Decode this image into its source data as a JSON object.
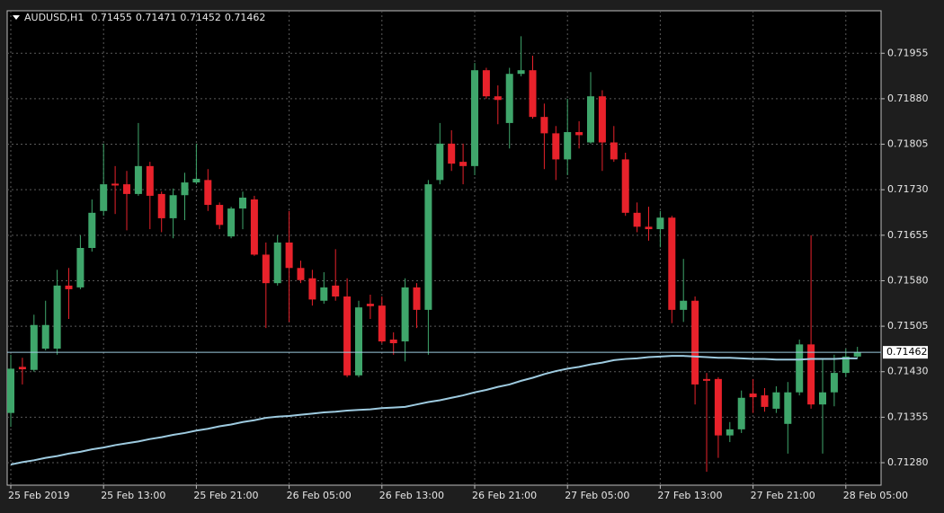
{
  "chart_data": {
    "type": "candlestick",
    "symbol": "AUDUSD,H1",
    "categories": [
      "25 Feb 2019",
      null,
      null,
      null,
      null,
      null,
      null,
      null,
      "25 Feb 13:00",
      null,
      null,
      null,
      null,
      null,
      null,
      null,
      "25 Feb 21:00",
      null,
      null,
      null,
      null,
      null,
      null,
      null,
      "26 Feb 05:00",
      null,
      null,
      null,
      null,
      null,
      null,
      null,
      "26 Feb 13:00",
      null,
      null,
      null,
      null,
      null,
      null,
      null,
      "26 Feb 21:00",
      null,
      null,
      null,
      null,
      null,
      null,
      null,
      "27 Feb 05:00",
      null,
      null,
      null,
      null,
      null,
      null,
      null,
      "27 Feb 13:00",
      null,
      null,
      null,
      null,
      null,
      null,
      null,
      "27 Feb 21:00",
      null,
      null,
      null,
      null,
      null,
      null,
      null,
      "28 Feb 05:00",
      null
    ],
    "ohlc": [
      [
        0.71362,
        0.71458,
        0.71339,
        0.71435
      ],
      [
        0.71438,
        0.71453,
        0.71409,
        0.71434
      ],
      [
        0.71433,
        0.71524,
        0.7143,
        0.71507
      ],
      [
        0.71468,
        0.71547,
        0.71465,
        0.71507
      ],
      [
        0.71468,
        0.71598,
        0.71458,
        0.71572
      ],
      [
        0.71572,
        0.71601,
        0.71517,
        0.71566
      ],
      [
        0.71569,
        0.71655,
        0.71566,
        0.71634
      ],
      [
        0.71634,
        0.71714,
        0.71628,
        0.71692
      ],
      [
        0.71695,
        0.71806,
        0.71687,
        0.71739
      ],
      [
        0.7174,
        0.71769,
        0.7169,
        0.71737
      ],
      [
        0.71739,
        0.71761,
        0.71663,
        0.71723
      ],
      [
        0.71723,
        0.7184,
        0.7172,
        0.71769
      ],
      [
        0.71769,
        0.71776,
        0.71665,
        0.7172
      ],
      [
        0.71723,
        0.71727,
        0.7166,
        0.71683
      ],
      [
        0.71683,
        0.71732,
        0.7165,
        0.71721
      ],
      [
        0.71721,
        0.71758,
        0.7168,
        0.71742
      ],
      [
        0.71742,
        0.71806,
        0.71739,
        0.71748
      ],
      [
        0.71746,
        0.71764,
        0.71695,
        0.71705
      ],
      [
        0.71705,
        0.71709,
        0.71665,
        0.71672
      ],
      [
        0.71653,
        0.71702,
        0.7165,
        0.71699
      ],
      [
        0.71699,
        0.71727,
        0.71665,
        0.71717
      ],
      [
        0.71714,
        0.7172,
        0.71621,
        0.71623
      ],
      [
        0.71623,
        0.71643,
        0.71502,
        0.71576
      ],
      [
        0.71576,
        0.71655,
        0.71572,
        0.71643
      ],
      [
        0.71643,
        0.71695,
        0.71512,
        0.71601
      ],
      [
        0.71601,
        0.71613,
        0.71576,
        0.71581
      ],
      [
        0.71584,
        0.71598,
        0.71539,
        0.71549
      ],
      [
        0.71547,
        0.71594,
        0.71542,
        0.71569
      ],
      [
        0.71572,
        0.71632,
        0.71547,
        0.71554
      ],
      [
        0.71554,
        0.71584,
        0.71421,
        0.71424
      ],
      [
        0.71424,
        0.71547,
        0.71421,
        0.71536
      ],
      [
        0.71542,
        0.71557,
        0.71517,
        0.71538
      ],
      [
        0.71539,
        0.71554,
        0.71477,
        0.7148
      ],
      [
        0.71483,
        0.71495,
        0.71458,
        0.71477
      ],
      [
        0.7148,
        0.71584,
        0.71447,
        0.71569
      ],
      [
        0.71569,
        0.71576,
        0.71502,
        0.71532
      ],
      [
        0.71532,
        0.71746,
        0.71458,
        0.71739
      ],
      [
        0.71746,
        0.7184,
        0.71739,
        0.71806
      ],
      [
        0.71806,
        0.71828,
        0.71761,
        0.71773
      ],
      [
        0.71776,
        0.71806,
        0.71739,
        0.71769
      ],
      [
        0.71769,
        0.71939,
        0.71754,
        0.71927
      ],
      [
        0.71927,
        0.71931,
        0.7188,
        0.71884
      ],
      [
        0.71884,
        0.71902,
        0.71838,
        0.71878
      ],
      [
        0.7184,
        0.71931,
        0.71798,
        0.71921
      ],
      [
        0.71921,
        0.71983,
        0.71917,
        0.71927
      ],
      [
        0.71927,
        0.71951,
        0.71847,
        0.7185
      ],
      [
        0.7185,
        0.71872,
        0.71764,
        0.71823
      ],
      [
        0.71823,
        0.71835,
        0.71746,
        0.7178
      ],
      [
        0.7178,
        0.7188,
        0.71754,
        0.71825
      ],
      [
        0.71825,
        0.71843,
        0.71798,
        0.7182
      ],
      [
        0.71808,
        0.71924,
        0.71806,
        0.71884
      ],
      [
        0.71884,
        0.71894,
        0.71761,
        0.71808
      ],
      [
        0.71808,
        0.71835,
        0.71776,
        0.7178
      ],
      [
        0.7178,
        0.71791,
        0.71687,
        0.71692
      ],
      [
        0.71692,
        0.71709,
        0.7166,
        0.71669
      ],
      [
        0.71669,
        0.71702,
        0.71646,
        0.71665
      ],
      [
        0.71665,
        0.71695,
        0.71635,
        0.71684
      ],
      [
        0.71684,
        0.71687,
        0.7151,
        0.71532
      ],
      [
        0.71532,
        0.71616,
        0.71512,
        0.71547
      ],
      [
        0.71547,
        0.71554,
        0.71376,
        0.71409
      ],
      [
        0.71418,
        0.71428,
        0.71265,
        0.71415
      ],
      [
        0.71418,
        0.71421,
        0.71288,
        0.71325
      ],
      [
        0.71325,
        0.71347,
        0.71314,
        0.71335
      ],
      [
        0.71335,
        0.71399,
        0.71329,
        0.71387
      ],
      [
        0.71394,
        0.71418,
        0.71362,
        0.71388
      ],
      [
        0.71391,
        0.71403,
        0.71364,
        0.71372
      ],
      [
        0.71369,
        0.71406,
        0.71362,
        0.71396
      ],
      [
        0.71344,
        0.71413,
        0.71295,
        0.71396
      ],
      [
        0.71396,
        0.71483,
        0.71391,
        0.71475
      ],
      [
        0.71475,
        0.71655,
        0.71369,
        0.71376
      ],
      [
        0.71376,
        0.7145,
        0.71295,
        0.71396
      ],
      [
        0.71396,
        0.71458,
        0.71373,
        0.71428
      ],
      [
        0.71428,
        0.71468,
        0.71421,
        0.71455
      ],
      [
        0.71455,
        0.71471,
        0.71452,
        0.71462
      ]
    ],
    "ma": [
      0.71277,
      0.71281,
      0.71284,
      0.71288,
      0.71291,
      0.71295,
      0.71298,
      0.71302,
      0.71305,
      0.71309,
      0.71312,
      0.71315,
      0.71319,
      0.71322,
      0.71326,
      0.71329,
      0.71333,
      0.71336,
      0.7134,
      0.71343,
      0.71347,
      0.7135,
      0.71354,
      0.71356,
      0.71357,
      0.71359,
      0.71361,
      0.71363,
      0.71364,
      0.71366,
      0.71367,
      0.71368,
      0.7137,
      0.71371,
      0.71372,
      0.71376,
      0.7138,
      0.71383,
      0.71387,
      0.71391,
      0.71396,
      0.714,
      0.71405,
      0.71409,
      0.71415,
      0.7142,
      0.71426,
      0.71431,
      0.71435,
      0.71438,
      0.71442,
      0.71445,
      0.71449,
      0.71451,
      0.71452,
      0.71454,
      0.71455,
      0.71456,
      0.71456,
      0.71455,
      0.71454,
      0.71453,
      0.71453,
      0.71452,
      0.71451,
      0.71451,
      0.7145,
      0.7145,
      0.7145,
      0.71451,
      0.71451,
      0.71451,
      0.71452,
      0.71452
    ],
    "current_price": 0.71462,
    "ylim": [
      0.71243,
      0.72025
    ],
    "yticks": [
      {
        "value": 0.7128,
        "label": "0.71280"
      },
      0.71355,
      {
        "value": 0.7143,
        "label": "0.71430"
      },
      0.71505,
      {
        "value": 0.7158,
        "label": "0.71580"
      },
      0.71655,
      {
        "value": 0.7173,
        "label": "0.71730"
      },
      0.71805,
      {
        "value": 0.7188,
        "label": "0.71880"
      },
      0.71955
    ],
    "grid": true,
    "up_color": "#3fa66b",
    "down_color": "#e8222b",
    "ma_color": "#9ecbe0",
    "grid_color": "#5a5a5a"
  }
}
